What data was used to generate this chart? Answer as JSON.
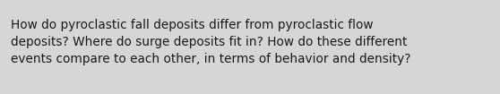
{
  "text": "How do pyroclastic fall deposits differ from pyroclastic flow\ndeposits? Where do surge deposits fit in? How do these different\nevents compare to each other, in terms of behavior and density?",
  "background_color": "#d6d6d6",
  "text_color": "#1a1a1a",
  "font_size": 9.8,
  "font_family": "DejaVu Sans",
  "fig_width": 5.58,
  "fig_height": 1.05,
  "dpi": 100
}
